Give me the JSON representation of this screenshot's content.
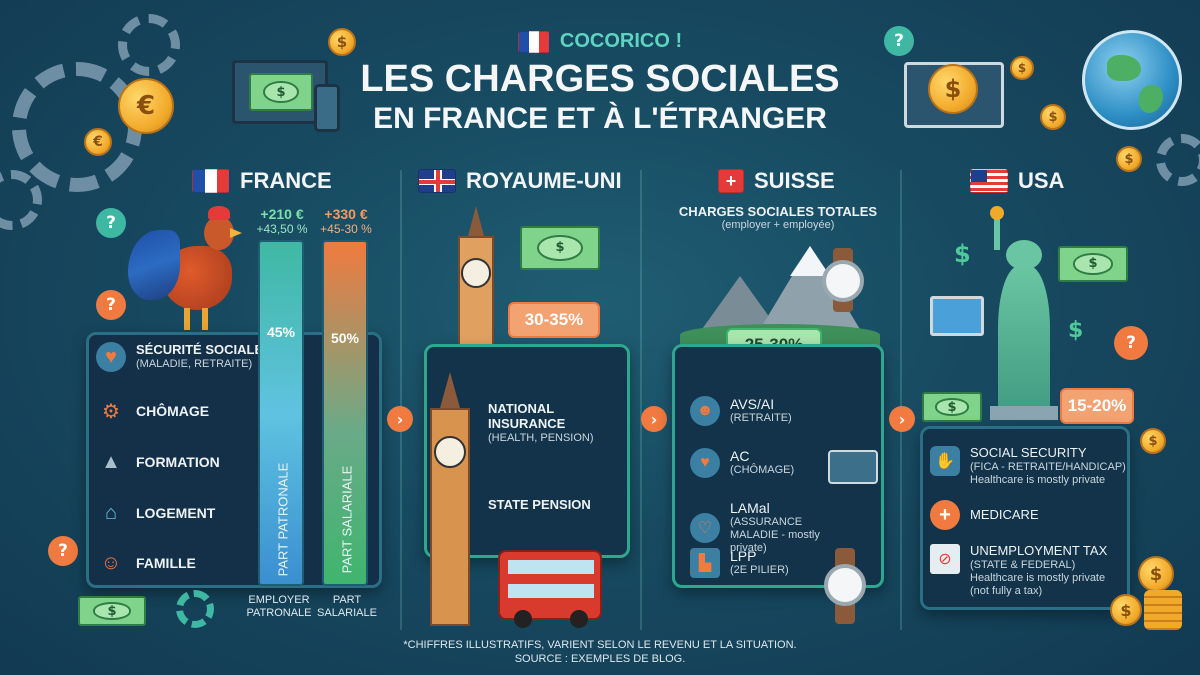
{
  "header": {
    "eyebrow": "COCORICO !",
    "title_line1": "LES CHARGES SOCIALES",
    "title_line2": "EN FRANCE ET À L'ÉTRANGER"
  },
  "france": {
    "name": "FRANCE",
    "employer": {
      "amount": "+210 €",
      "range": "+43,50 %",
      "bar_percent": "45%",
      "bar_label": "PART PATRONALE",
      "caption": "EMPLOYER PATRONALE"
    },
    "employee": {
      "amount": "+330 €",
      "range": "+45-30 %",
      "bar_percent": "50%",
      "bar_label": "PART SALARIALE",
      "caption": "PART SALARIALE"
    },
    "items": [
      {
        "label": "SÉCURITÉ SOCIALE",
        "sub": "(MALADIE, RETRAITE)",
        "icon": "heart-shield-icon"
      },
      {
        "label": "CHÔMAGE",
        "sub": "",
        "icon": "gear-briefcase-icon"
      },
      {
        "label": "FORMATION",
        "sub": "",
        "icon": "graduation-cap-icon"
      },
      {
        "label": "LOGEMENT",
        "sub": "",
        "icon": "house-icon"
      },
      {
        "label": "FAMILLE",
        "sub": "",
        "icon": "family-icon"
      }
    ]
  },
  "uk": {
    "name": "ROYAUME-UNI",
    "rate": "30-35%",
    "items": [
      {
        "label": "NATIONAL INSURANCE",
        "sub": "(HEALTH, PENSION)"
      },
      {
        "label": "STATE PENSION",
        "sub": ""
      }
    ]
  },
  "suisse": {
    "name": "SUISSE",
    "heading": "CHARGES SOCIALES TOTALES",
    "heading_sub": "(employer + employée)",
    "rate": "25-30%",
    "items": [
      {
        "label": "AVS/AI",
        "sub": "(RETRAITE)",
        "icon": "people-icon"
      },
      {
        "label": "AC",
        "sub": "(CHÔMAGE)",
        "icon": "hand-heart-icon"
      },
      {
        "label": "LAMal",
        "sub": "(ASSURANCE MALADIE - mostly private)",
        "icon": "heartbeat-icon"
      },
      {
        "label": "LPP",
        "sub": "(2E PILIER)",
        "icon": "factory-icon"
      }
    ]
  },
  "usa": {
    "name": "USA",
    "rate": "15-20%",
    "items": [
      {
        "label": "SOCIAL SECURITY",
        "sub": "(FICA - RETRAITE/HANDICAP)",
        "note": "Healthcare is mostly private",
        "icon": "hand-icon"
      },
      {
        "label": "MEDICARE",
        "sub": "",
        "note": "",
        "icon": "medical-cross-icon"
      },
      {
        "label": "UNEMPLOYMENT TAX",
        "sub": "(STATE & FEDERAL)",
        "note": "Healthcare is mostly private (not fully a tax)",
        "icon": "document-icon"
      }
    ]
  },
  "footer": {
    "line1": "*CHIFFRES ILLUSTRATIFS, VARIENT SELON LE REVENU ET LA SITUATION.",
    "line2": "SOURCE : EXEMPLES DE BLOG."
  },
  "symbols": {
    "euro": "€",
    "dollar": "$",
    "question": "?",
    "chevron": "›"
  },
  "colors": {
    "accent_teal": "#2ea78e",
    "accent_orange": "#f07a3f",
    "employer_bar": "#5fc3e0",
    "employee_bar": "#f07a3f",
    "background": "#174a61"
  }
}
